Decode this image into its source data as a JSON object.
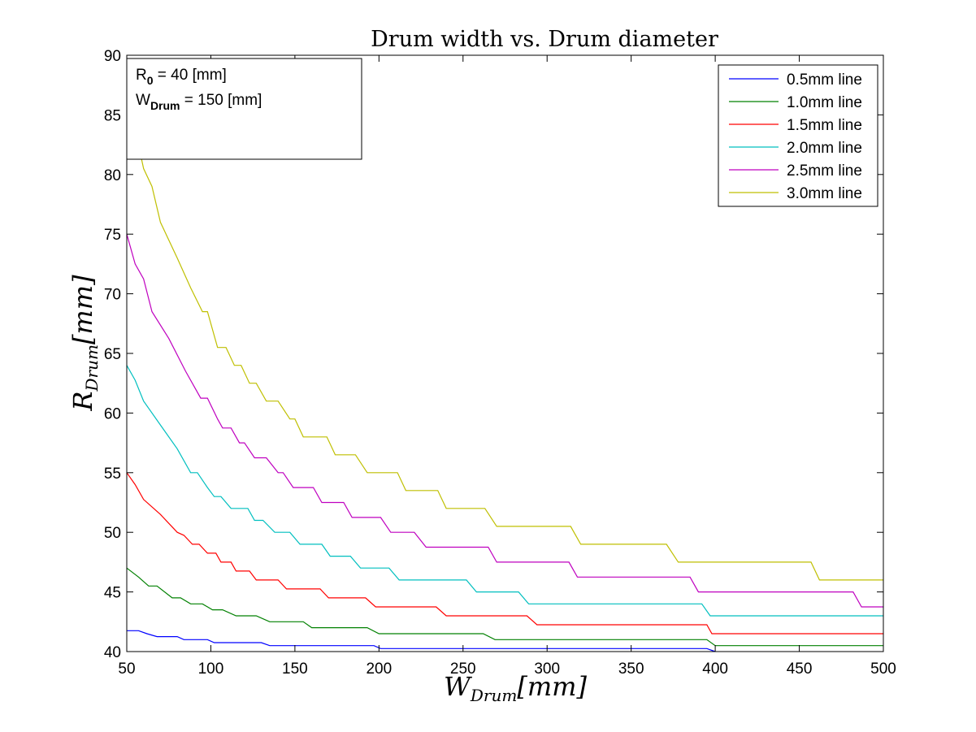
{
  "chart_data": {
    "type": "line",
    "title": "Drum width vs. Drum diameter",
    "xlabel": {
      "main": "W",
      "sub": "Drum",
      "unit": "[mm]"
    },
    "ylabel": {
      "main": "R",
      "sub": "Drum",
      "unit": "[mm]"
    },
    "xlim": [
      50,
      500
    ],
    "ylim": [
      40,
      90
    ],
    "xticks": [
      50,
      100,
      150,
      200,
      250,
      300,
      350,
      400,
      450,
      500
    ],
    "yticks": [
      40,
      45,
      50,
      55,
      60,
      65,
      70,
      75,
      80,
      85,
      90
    ],
    "grid": false,
    "legend_position": "top-right",
    "annotation": [
      {
        "main": "R",
        "sub": "0",
        "rest": " = 40 [mm]"
      },
      {
        "main": "W",
        "sub": "Drum",
        "rest": " = 150 [mm]"
      }
    ],
    "series": [
      {
        "name": "0.5mm line",
        "color": "#0000ff",
        "points": [
          [
            50,
            41.75
          ],
          [
            57,
            41.75
          ],
          [
            62,
            41.5
          ],
          [
            68,
            41.25
          ],
          [
            80,
            41.25
          ],
          [
            84,
            41
          ],
          [
            98,
            41
          ],
          [
            102,
            40.75
          ],
          [
            130,
            40.75
          ],
          [
            135,
            40.5
          ],
          [
            197,
            40.5
          ],
          [
            201,
            40.25
          ],
          [
            395,
            40.25
          ],
          [
            400,
            40
          ]
        ]
      },
      {
        "name": "1.0mm line",
        "color": "#008000",
        "points": [
          [
            50,
            47
          ],
          [
            57,
            46.25
          ],
          [
            63,
            45.5
          ],
          [
            68,
            45.5
          ],
          [
            77,
            44.5
          ],
          [
            82,
            44.5
          ],
          [
            88,
            44
          ],
          [
            95,
            44
          ],
          [
            101,
            43.5
          ],
          [
            107,
            43.5
          ],
          [
            115,
            43
          ],
          [
            127,
            43
          ],
          [
            135,
            42.5
          ],
          [
            155,
            42.5
          ],
          [
            160,
            42
          ],
          [
            193,
            42
          ],
          [
            200,
            41.5
          ],
          [
            262,
            41.5
          ],
          [
            269,
            41
          ],
          [
            395,
            41
          ],
          [
            400,
            40.5
          ],
          [
            500,
            40.5
          ]
        ]
      },
      {
        "name": "1.5mm line",
        "color": "#ff0000",
        "points": [
          [
            50,
            55
          ],
          [
            55,
            54
          ],
          [
            60,
            52.75
          ],
          [
            70,
            51.5
          ],
          [
            80,
            50
          ],
          [
            84,
            49.75
          ],
          [
            89,
            49
          ],
          [
            93,
            49
          ],
          [
            98,
            48.25
          ],
          [
            103,
            48.25
          ],
          [
            106,
            47.5
          ],
          [
            112,
            47.5
          ],
          [
            115,
            46.75
          ],
          [
            123,
            46.75
          ],
          [
            127,
            46
          ],
          [
            140,
            46
          ],
          [
            145,
            45.25
          ],
          [
            165,
            45.25
          ],
          [
            170,
            44.5
          ],
          [
            192,
            44.5
          ],
          [
            198,
            43.75
          ],
          [
            234,
            43.75
          ],
          [
            240,
            43
          ],
          [
            288,
            43
          ],
          [
            294,
            42.25
          ],
          [
            395,
            42.25
          ],
          [
            398,
            41.5
          ],
          [
            500,
            41.5
          ]
        ]
      },
      {
        "name": "2.0mm line",
        "color": "#00bfbf",
        "points": [
          [
            50,
            64
          ],
          [
            55,
            62.75
          ],
          [
            60,
            61
          ],
          [
            70,
            59
          ],
          [
            80,
            57
          ],
          [
            88,
            55
          ],
          [
            92,
            55
          ],
          [
            98,
            53.75
          ],
          [
            102,
            53
          ],
          [
            106,
            53
          ],
          [
            112,
            52
          ],
          [
            122,
            52
          ],
          [
            126,
            51
          ],
          [
            131,
            51
          ],
          [
            138,
            50
          ],
          [
            147,
            50
          ],
          [
            153,
            49
          ],
          [
            166,
            49
          ],
          [
            171,
            48
          ],
          [
            183,
            48
          ],
          [
            189,
            47
          ],
          [
            206,
            47
          ],
          [
            212,
            46
          ],
          [
            252,
            46
          ],
          [
            258,
            45
          ],
          [
            283,
            45
          ],
          [
            289,
            44
          ],
          [
            392,
            44
          ],
          [
            397,
            43
          ],
          [
            500,
            43
          ]
        ]
      },
      {
        "name": "2.5mm line",
        "color": "#bf00bf",
        "points": [
          [
            50,
            75
          ],
          [
            55,
            72.5
          ],
          [
            60,
            71.25
          ],
          [
            65,
            68.5
          ],
          [
            75,
            66.25
          ],
          [
            85,
            63.5
          ],
          [
            94,
            61.25
          ],
          [
            98,
            61.25
          ],
          [
            104,
            59.5
          ],
          [
            107,
            58.75
          ],
          [
            112,
            58.75
          ],
          [
            117,
            57.5
          ],
          [
            120,
            57.5
          ],
          [
            126,
            56.25
          ],
          [
            133,
            56.25
          ],
          [
            140,
            55
          ],
          [
            143,
            55
          ],
          [
            149,
            53.75
          ],
          [
            161,
            53.75
          ],
          [
            166,
            52.5
          ],
          [
            179,
            52.5
          ],
          [
            184,
            51.25
          ],
          [
            201,
            51.25
          ],
          [
            207,
            50
          ],
          [
            221,
            50
          ],
          [
            228,
            48.75
          ],
          [
            265,
            48.75
          ],
          [
            270,
            47.5
          ],
          [
            313,
            47.5
          ],
          [
            318,
            46.25
          ],
          [
            385,
            46.25
          ],
          [
            390,
            45
          ],
          [
            482,
            45
          ],
          [
            487,
            43.75
          ],
          [
            500,
            43.75
          ]
        ]
      },
      {
        "name": "3.0mm line",
        "color": "#bfbf00",
        "points": [
          [
            50,
            86
          ],
          [
            55,
            83.75
          ],
          [
            60,
            80.5
          ],
          [
            65,
            79
          ],
          [
            70,
            76
          ],
          [
            80,
            73
          ],
          [
            88,
            70.5
          ],
          [
            95,
            68.5
          ],
          [
            98,
            68.5
          ],
          [
            104,
            65.5
          ],
          [
            109,
            65.5
          ],
          [
            114,
            64
          ],
          [
            118,
            64
          ],
          [
            123,
            62.5
          ],
          [
            127,
            62.5
          ],
          [
            133,
            61
          ],
          [
            140,
            61
          ],
          [
            147,
            59.5
          ],
          [
            150,
            59.5
          ],
          [
            155,
            58
          ],
          [
            169,
            58
          ],
          [
            174,
            56.5
          ],
          [
            186,
            56.5
          ],
          [
            193,
            55
          ],
          [
            211,
            55
          ],
          [
            216,
            53.5
          ],
          [
            235,
            53.5
          ],
          [
            240,
            52
          ],
          [
            263,
            52
          ],
          [
            270,
            50.5
          ],
          [
            314,
            50.5
          ],
          [
            320,
            49
          ],
          [
            371,
            49
          ],
          [
            378,
            47.5
          ],
          [
            457,
            47.5
          ],
          [
            462,
            46
          ],
          [
            500,
            46
          ]
        ]
      }
    ]
  }
}
